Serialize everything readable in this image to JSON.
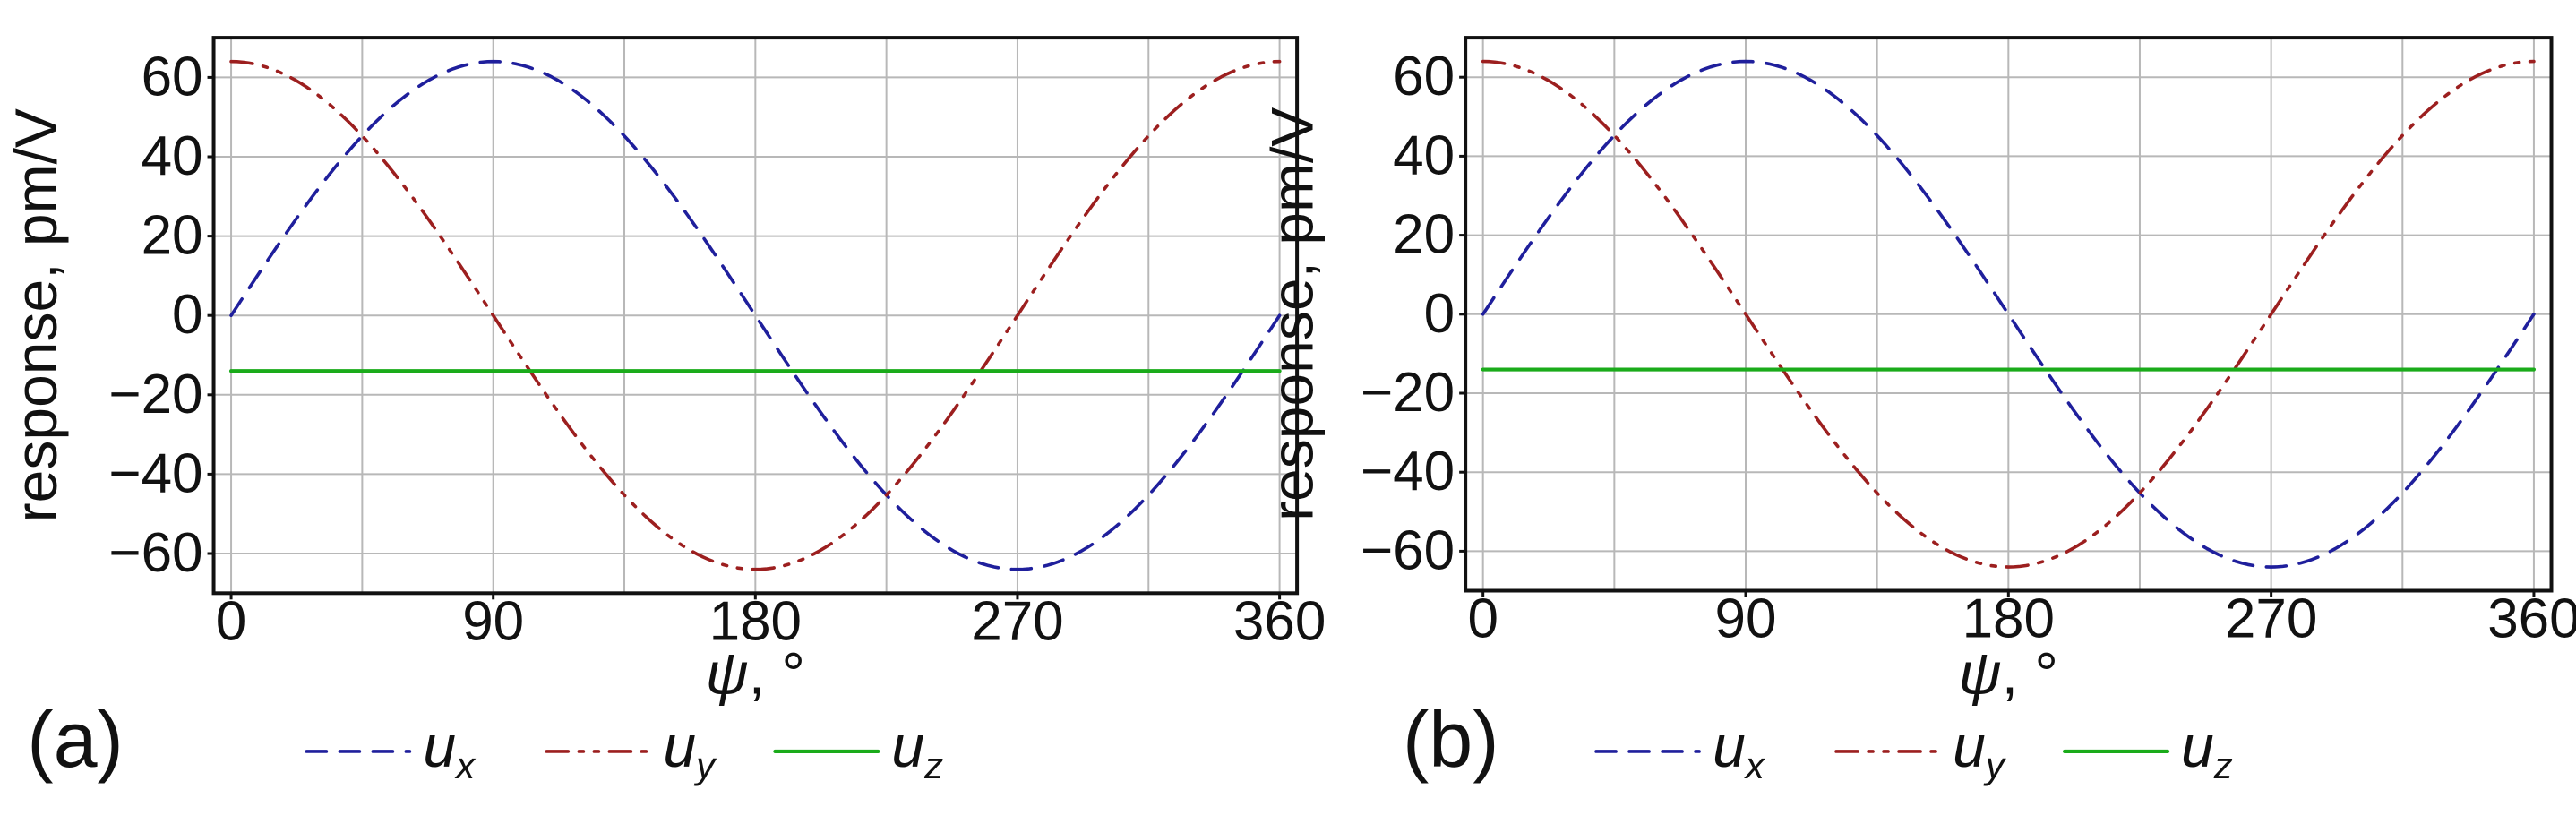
{
  "chart_data": [
    {
      "panel_label": "(a)",
      "type": "line",
      "title": "",
      "xlabel_symbol": "ψ",
      "xlabel_unit": ", °",
      "ylabel": "response, pm/V",
      "xlim": [
        -6,
        366
      ],
      "ylim": [
        -70,
        70
      ],
      "xticks": [
        0,
        90,
        180,
        270,
        360
      ],
      "yticks": [
        -60,
        -40,
        -20,
        0,
        20,
        40,
        60
      ],
      "grid": true,
      "series": [
        {
          "name": "u_x",
          "label": "u",
          "subscript": "x",
          "color": "#1f1f9c",
          "style": "dashed",
          "x": [
            0,
            30,
            60,
            90,
            120,
            150,
            180,
            210,
            240,
            270,
            300,
            330,
            360
          ],
          "values": [
            0,
            32,
            55,
            64,
            55,
            32,
            0,
            -32,
            -55,
            -64,
            -55,
            -32,
            0
          ]
        },
        {
          "name": "u_y",
          "label": "u",
          "subscript": "y",
          "color": "#9c1f1f",
          "style": "dashdotdot",
          "x": [
            0,
            30,
            60,
            90,
            120,
            150,
            180,
            210,
            240,
            270,
            300,
            330,
            360
          ],
          "values": [
            64,
            55,
            32,
            0,
            -32,
            -55,
            -64,
            -55,
            -32,
            0,
            32,
            55,
            64
          ]
        },
        {
          "name": "u_z",
          "label": "u",
          "subscript": "z",
          "color": "#1aab1a",
          "style": "solid",
          "x": [
            0,
            360
          ],
          "values": [
            -14,
            -14
          ]
        }
      ]
    },
    {
      "panel_label": "(b)",
      "type": "line",
      "title": "",
      "xlabel_symbol": "ψ",
      "xlabel_unit": ", °",
      "ylabel": "response, pm/V",
      "xlim": [
        -6,
        366
      ],
      "ylim": [
        -70,
        70
      ],
      "xticks": [
        0,
        90,
        180,
        270,
        360
      ],
      "yticks": [
        -60,
        -40,
        -20,
        0,
        20,
        40,
        60
      ],
      "grid": true,
      "series": [
        {
          "name": "u_x",
          "label": "u",
          "subscript": "x",
          "color": "#1f1f9c",
          "style": "dashed",
          "x": [
            0,
            30,
            60,
            90,
            120,
            150,
            180,
            210,
            240,
            270,
            300,
            330,
            360
          ],
          "values": [
            0,
            32,
            55,
            64,
            55,
            32,
            0,
            -32,
            -55,
            -64,
            -55,
            -32,
            0
          ]
        },
        {
          "name": "u_y",
          "label": "u",
          "subscript": "y",
          "color": "#9c1f1f",
          "style": "dashdotdot",
          "x": [
            0,
            30,
            60,
            90,
            120,
            150,
            180,
            210,
            240,
            270,
            300,
            330,
            360
          ],
          "values": [
            64,
            55,
            32,
            0,
            -32,
            -55,
            -64,
            -55,
            -32,
            0,
            32,
            55,
            64
          ]
        },
        {
          "name": "u_z",
          "label": "u",
          "subscript": "z",
          "color": "#1aab1a",
          "style": "solid",
          "x": [
            0,
            360
          ],
          "values": [
            -14,
            -14
          ]
        }
      ]
    }
  ]
}
